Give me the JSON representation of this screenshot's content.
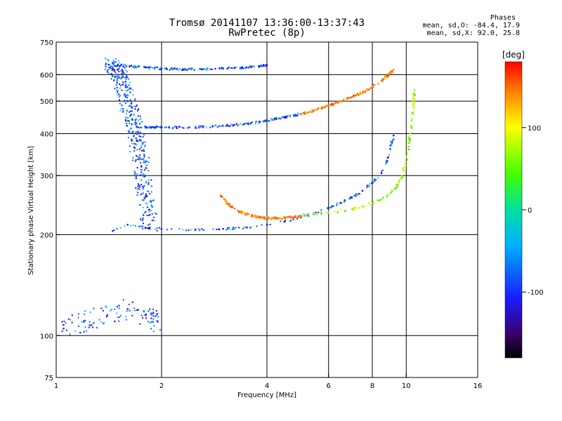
{
  "header": {
    "title_line1": "Tromsø 20141107 13:36:00-13:37:43",
    "title_line2": "RwPretec (8p)"
  },
  "phase_info": {
    "heading": "Phases",
    "line_o": "mean, sd,O: -84.4, 17.9",
    "line_x": "mean, sd,X:  92.0, 25.8"
  },
  "colorbar": {
    "unit": "[deg]",
    "ticks": [
      {
        "value": 100,
        "label": "100"
      },
      {
        "value": 0,
        "label": "0"
      },
      {
        "value": -100,
        "label": "-100"
      }
    ],
    "range": [
      -180,
      180
    ]
  },
  "chart_data": {
    "type": "scatter",
    "title": "Tromsø 20141107 13:36:00-13:37:43",
    "subtitle": "RwPretec (8p)",
    "xlabel": "Frequency [MHz]",
    "ylabel": "Stationary phase Virtual Height [km]",
    "xscale": "log",
    "yscale": "log",
    "xlim": [
      1,
      16
    ],
    "ylim": [
      75,
      750
    ],
    "xticks": [
      1,
      2,
      4,
      6,
      8,
      10,
      16
    ],
    "yticks": [
      75,
      100,
      200,
      300,
      400,
      500,
      600,
      750
    ],
    "xgrid": [
      2,
      4,
      6,
      8,
      10
    ],
    "ygrid": [
      100,
      200,
      300,
      400,
      500,
      600
    ],
    "series": [
      {
        "key": "o_f2",
        "colorset": "blue",
        "x": [
          1.45,
          1.6,
          1.8,
          2.0,
          2.5,
          3.0,
          3.5,
          4.0,
          4.5,
          5.0,
          5.5,
          6.0,
          6.5,
          7.0,
          7.5,
          8.0,
          8.5,
          8.8,
          9.0,
          9.2
        ],
        "y": [
          205,
          214,
          210,
          208,
          207,
          208,
          210,
          214,
          219,
          225,
          232,
          240,
          249,
          258,
          270,
          285,
          305,
          330,
          360,
          395
        ]
      },
      {
        "key": "x_f2",
        "colorset": "green",
        "x": [
          5.0,
          6.0,
          7.0,
          8.0,
          8.8,
          9.3,
          9.7,
          10.0,
          10.2,
          10.35,
          10.45,
          10.5,
          10.55
        ],
        "y": [
          228,
          232,
          238,
          248,
          260,
          275,
          295,
          330,
          380,
          420,
          460,
          500,
          540
        ]
      },
      {
        "key": "x_low",
        "colorset": "orange",
        "x": [
          2.95,
          3.1,
          3.3,
          3.5,
          3.8,
          4.0,
          4.3,
          4.6,
          5.0
        ],
        "y": [
          262,
          246,
          236,
          230,
          225,
          224,
          224,
          225,
          227
        ]
      },
      {
        "key": "o_multi",
        "colorset": "blue",
        "x": [
          1.7,
          1.9,
          2.1,
          2.4,
          2.8,
          3.2,
          3.6,
          4.0,
          4.5,
          5.0
        ],
        "y": [
          420,
          418,
          417,
          418,
          420,
          424,
          430,
          438,
          447,
          458
        ]
      },
      {
        "key": "x_multi",
        "colorset": "orange",
        "x": [
          5.0,
          5.5,
          6.0,
          6.5,
          7.0,
          7.5,
          8.0,
          8.5,
          8.9,
          9.2
        ],
        "y": [
          458,
          470,
          485,
          500,
          515,
          530,
          550,
          575,
          600,
          620
        ]
      },
      {
        "key": "o_top",
        "colorset": "blue",
        "x": [
          1.5,
          1.8,
          2.0,
          2.3,
          2.6,
          3.0,
          3.4,
          3.8,
          4.0
        ],
        "y": [
          640,
          630,
          625,
          622,
          623,
          626,
          630,
          635,
          640
        ]
      },
      {
        "key": "spread_f",
        "colorset": "blue",
        "x": [
          1.45,
          1.5,
          1.55,
          1.6,
          1.65,
          1.7,
          1.75,
          1.8,
          1.85
        ],
        "y": [
          650,
          620,
          560,
          500,
          440,
          380,
          320,
          260,
          210
        ]
      },
      {
        "key": "e_layer",
        "colorset": "blue",
        "x": [
          1.05,
          1.2,
          1.4,
          1.6,
          1.8,
          1.95
        ],
        "y": [
          105,
          110,
          115,
          120,
          115,
          110
        ]
      }
    ]
  }
}
